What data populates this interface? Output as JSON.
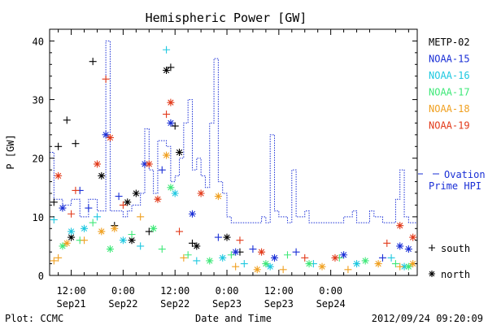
{
  "chart_data": {
    "type": "scatter",
    "title": "Hemispheric Power [GW]",
    "ylabel": "P [GW]",
    "xlabel": "Date and Time",
    "ylim": [
      0,
      42
    ],
    "xlim": [
      "2012-09-21 07:00",
      "2012-09-24 20:00"
    ],
    "y_ticks": [
      0,
      10,
      20,
      30,
      40
    ],
    "x_ticks": [
      {
        "t": "2012-09-21 12:00",
        "l1": "12:00",
        "l2": "Sep21"
      },
      {
        "t": "2012-09-22 00:00",
        "l1": "0:00",
        "l2": "Sep22"
      },
      {
        "t": "2012-09-22 12:00",
        "l1": "12:00",
        "l2": "Sep22"
      },
      {
        "t": "2012-09-23 00:00",
        "l1": "0:00",
        "l2": "Sep23"
      },
      {
        "t": "2012-09-23 12:00",
        "l1": "12:00",
        "l2": "Sep23"
      },
      {
        "t": "2012-09-24 00:00",
        "l1": "0:00",
        "l2": "Sep24"
      }
    ],
    "series": [
      {
        "name": "METP-02",
        "color": "#000000"
      },
      {
        "name": "NOAA-15",
        "color": "#1a2fd6"
      },
      {
        "name": "NOAA-16",
        "color": "#1ec8e0"
      },
      {
        "name": "NOAA-17",
        "color": "#3ee878"
      },
      {
        "name": "NOAA-18",
        "color": "#f0a020"
      },
      {
        "name": "NOAA-19",
        "color": "#e23a1a"
      }
    ],
    "ovation": {
      "name_lines": [
        "Ovation",
        "Prime HPI"
      ],
      "color": "#1a2fd6",
      "steps": [
        [
          "2012-09-21 07:00",
          21
        ],
        [
          "2012-09-21 08:00",
          13
        ],
        [
          "2012-09-21 10:00",
          12
        ],
        [
          "2012-09-21 12:00",
          13
        ],
        [
          "2012-09-21 14:00",
          10
        ],
        [
          "2012-09-21 16:00",
          13
        ],
        [
          "2012-09-21 18:00",
          11
        ],
        [
          "2012-09-21 20:00",
          40
        ],
        [
          "2012-09-21 21:00",
          11
        ],
        [
          "2012-09-22 00:00",
          10
        ],
        [
          "2012-09-22 01:00",
          11
        ],
        [
          "2012-09-22 02:00",
          12
        ],
        [
          "2012-09-22 04:00",
          14
        ],
        [
          "2012-09-22 05:00",
          25
        ],
        [
          "2012-09-22 06:00",
          18
        ],
        [
          "2012-09-22 07:00",
          14
        ],
        [
          "2012-09-22 08:00",
          23
        ],
        [
          "2012-09-22 10:00",
          22
        ],
        [
          "2012-09-22 11:00",
          16
        ],
        [
          "2012-09-22 12:00",
          17
        ],
        [
          "2012-09-22 13:00",
          20
        ],
        [
          "2012-09-22 14:00",
          26
        ],
        [
          "2012-09-22 15:00",
          30
        ],
        [
          "2012-09-22 16:00",
          18
        ],
        [
          "2012-09-22 17:00",
          20
        ],
        [
          "2012-09-22 18:00",
          17
        ],
        [
          "2012-09-22 19:00",
          15
        ],
        [
          "2012-09-22 20:00",
          26
        ],
        [
          "2012-09-22 21:00",
          37
        ],
        [
          "2012-09-22 22:00",
          16
        ],
        [
          "2012-09-22 23:00",
          14
        ],
        [
          "2012-09-23 00:00",
          10
        ],
        [
          "2012-09-23 01:00",
          9
        ],
        [
          "2012-09-23 08:00",
          10
        ],
        [
          "2012-09-23 09:00",
          9
        ],
        [
          "2012-09-23 10:00",
          24
        ],
        [
          "2012-09-23 11:00",
          11
        ],
        [
          "2012-09-23 12:00",
          10
        ],
        [
          "2012-09-23 14:00",
          9
        ],
        [
          "2012-09-23 15:00",
          18
        ],
        [
          "2012-09-23 16:00",
          10
        ],
        [
          "2012-09-23 18:00",
          11
        ],
        [
          "2012-09-23 19:00",
          9
        ],
        [
          "2012-09-24 03:00",
          10
        ],
        [
          "2012-09-24 05:00",
          11
        ],
        [
          "2012-09-24 06:00",
          9
        ],
        [
          "2012-09-24 09:00",
          11
        ],
        [
          "2012-09-24 10:00",
          10
        ],
        [
          "2012-09-24 12:00",
          9
        ],
        [
          "2012-09-24 15:00",
          13
        ],
        [
          "2012-09-24 16:00",
          18
        ],
        [
          "2012-09-24 17:00",
          10
        ],
        [
          "2012-09-24 18:00",
          9
        ],
        [
          "2012-09-24 20:00",
          9
        ]
      ]
    },
    "points": [
      [
        "METP-02",
        "south",
        "2012-09-21 09:00",
        22.0
      ],
      [
        "METP-02",
        "south",
        "2012-09-21 11:00",
        26.5
      ],
      [
        "METP-02",
        "south",
        "2012-09-21 13:00",
        22.5
      ],
      [
        "METP-02",
        "south",
        "2012-09-21 17:00",
        36.5
      ],
      [
        "METP-02",
        "south",
        "2012-09-21 08:00",
        12.5
      ],
      [
        "METP-02",
        "north",
        "2012-09-21 19:00",
        17.0
      ],
      [
        "METP-02",
        "north",
        "2012-09-22 01:00",
        12.5
      ],
      [
        "METP-02",
        "north",
        "2012-09-22 03:00",
        14.0
      ],
      [
        "METP-02",
        "north",
        "2012-09-22 10:00",
        35.0
      ],
      [
        "METP-02",
        "south",
        "2012-09-22 11:00",
        35.5
      ],
      [
        "METP-02",
        "south",
        "2012-09-22 12:00",
        25.5
      ],
      [
        "METP-02",
        "north",
        "2012-09-22 13:00",
        21.0
      ],
      [
        "METP-02",
        "south",
        "2012-09-22 16:00",
        5.5
      ],
      [
        "METP-02",
        "north",
        "2012-09-22 17:00",
        5.0
      ],
      [
        "METP-02",
        "north",
        "2012-09-23 00:00",
        6.5
      ],
      [
        "METP-02",
        "south",
        "2012-09-23 03:00",
        4.0
      ],
      [
        "METP-02",
        "north",
        "2012-09-21 12:00",
        6.5
      ],
      [
        "METP-02",
        "south",
        "2012-09-21 22:00",
        8.5
      ],
      [
        "METP-02",
        "north",
        "2012-09-22 02:00",
        6.0
      ],
      [
        "METP-02",
        "south",
        "2012-09-22 06:00",
        7.5
      ],
      [
        "NOAA-15",
        "north",
        "2012-09-21 10:00",
        11.5
      ],
      [
        "NOAA-15",
        "south",
        "2012-09-21 14:00",
        14.5
      ],
      [
        "NOAA-15",
        "north",
        "2012-09-21 20:00",
        24.0
      ],
      [
        "NOAA-15",
        "south",
        "2012-09-21 23:00",
        13.5
      ],
      [
        "NOAA-15",
        "north",
        "2012-09-22 05:00",
        19.0
      ],
      [
        "NOAA-15",
        "south",
        "2012-09-22 09:00",
        18.0
      ],
      [
        "NOAA-15",
        "north",
        "2012-09-22 11:00",
        26.0
      ],
      [
        "NOAA-15",
        "north",
        "2012-09-22 16:00",
        10.5
      ],
      [
        "NOAA-15",
        "south",
        "2012-09-22 22:00",
        6.5
      ],
      [
        "NOAA-15",
        "north",
        "2012-09-23 02:00",
        4.0
      ],
      [
        "NOAA-15",
        "south",
        "2012-09-23 06:00",
        4.5
      ],
      [
        "NOAA-15",
        "north",
        "2012-09-23 11:00",
        3.0
      ],
      [
        "NOAA-15",
        "south",
        "2012-09-23 16:00",
        4.0
      ],
      [
        "NOAA-15",
        "north",
        "2012-09-24 03:00",
        3.5
      ],
      [
        "NOAA-15",
        "south",
        "2012-09-24 12:00",
        3.0
      ],
      [
        "NOAA-15",
        "north",
        "2012-09-24 16:00",
        5.0
      ],
      [
        "NOAA-15",
        "north",
        "2012-09-24 18:00",
        4.5
      ],
      [
        "NOAA-15",
        "south",
        "2012-09-21 16:00",
        11.5
      ],
      [
        "NOAA-16",
        "south",
        "2012-09-21 08:00",
        9.5
      ],
      [
        "NOAA-16",
        "north",
        "2012-09-21 12:00",
        7.5
      ],
      [
        "NOAA-16",
        "south",
        "2012-09-21 18:00",
        10.0
      ],
      [
        "NOAA-16",
        "north",
        "2012-09-22 00:00",
        6.0
      ],
      [
        "NOAA-16",
        "south",
        "2012-09-22 10:00",
        38.5
      ],
      [
        "NOAA-16",
        "north",
        "2012-09-22 12:00",
        14.0
      ],
      [
        "NOAA-16",
        "south",
        "2012-09-22 17:00",
        2.5
      ],
      [
        "NOAA-16",
        "north",
        "2012-09-22 23:00",
        3.0
      ],
      [
        "NOAA-16",
        "south",
        "2012-09-23 04:00",
        2.0
      ],
      [
        "NOAA-16",
        "north",
        "2012-09-23 10:00",
        1.5
      ],
      [
        "NOAA-16",
        "south",
        "2012-09-23 20:00",
        2.0
      ],
      [
        "NOAA-16",
        "north",
        "2012-09-24 06:00",
        2.0
      ],
      [
        "NOAA-16",
        "south",
        "2012-09-24 14:00",
        3.0
      ],
      [
        "NOAA-16",
        "north",
        "2012-09-24 17:00",
        1.5
      ],
      [
        "NOAA-16",
        "south",
        "2012-09-22 04:00",
        5.0
      ],
      [
        "NOAA-16",
        "north",
        "2012-09-21 15:00",
        8.0
      ],
      [
        "NOAA-17",
        "north",
        "2012-09-21 10:00",
        5.0
      ],
      [
        "NOAA-17",
        "south",
        "2012-09-21 14:00",
        6.0
      ],
      [
        "NOAA-17",
        "north",
        "2012-09-21 21:00",
        4.5
      ],
      [
        "NOAA-17",
        "south",
        "2012-09-22 02:00",
        7.0
      ],
      [
        "NOAA-17",
        "north",
        "2012-09-22 07:00",
        8.0
      ],
      [
        "NOAA-17",
        "south",
        "2012-09-22 09:00",
        4.5
      ],
      [
        "NOAA-17",
        "north",
        "2012-09-22 11:00",
        15.0
      ],
      [
        "NOAA-17",
        "south",
        "2012-09-22 15:00",
        3.5
      ],
      [
        "NOAA-17",
        "north",
        "2012-09-22 20:00",
        2.5
      ],
      [
        "NOAA-17",
        "south",
        "2012-09-23 01:00",
        3.5
      ],
      [
        "NOAA-17",
        "north",
        "2012-09-23 09:00",
        2.0
      ],
      [
        "NOAA-17",
        "south",
        "2012-09-23 14:00",
        3.5
      ],
      [
        "NOAA-17",
        "north",
        "2012-09-23 19:00",
        2.0
      ],
      [
        "NOAA-17",
        "south",
        "2012-09-24 02:00",
        3.0
      ],
      [
        "NOAA-17",
        "north",
        "2012-09-24 08:00",
        2.5
      ],
      [
        "NOAA-17",
        "south",
        "2012-09-24 15:00",
        2.0
      ],
      [
        "NOAA-17",
        "north",
        "2012-09-24 18:00",
        1.5
      ],
      [
        "NOAA-17",
        "south",
        "2012-09-21 17:00",
        9.0
      ],
      [
        "NOAA-18",
        "south",
        "2012-09-21 08:00",
        2.5
      ],
      [
        "NOAA-18",
        "north",
        "2012-09-21 11:00",
        5.5
      ],
      [
        "NOAA-18",
        "south",
        "2012-09-21 15:00",
        6.0
      ],
      [
        "NOAA-18",
        "north",
        "2012-09-21 22:00",
        8.0
      ],
      [
        "NOAA-18",
        "south",
        "2012-09-22 04:00",
        10.0
      ],
      [
        "NOAA-18",
        "north",
        "2012-09-22 10:00",
        20.5
      ],
      [
        "NOAA-18",
        "south",
        "2012-09-22 14:00",
        3.0
      ],
      [
        "NOAA-18",
        "north",
        "2012-09-22 22:00",
        13.5
      ],
      [
        "NOAA-18",
        "south",
        "2012-09-23 02:00",
        1.5
      ],
      [
        "NOAA-18",
        "north",
        "2012-09-23 07:00",
        1.0
      ],
      [
        "NOAA-18",
        "south",
        "2012-09-23 13:00",
        1.0
      ],
      [
        "NOAA-18",
        "north",
        "2012-09-23 22:00",
        1.5
      ],
      [
        "NOAA-18",
        "south",
        "2012-09-24 04:00",
        1.0
      ],
      [
        "NOAA-18",
        "north",
        "2012-09-24 11:00",
        2.0
      ],
      [
        "NOAA-18",
        "south",
        "2012-09-24 16:00",
        1.5
      ],
      [
        "NOAA-18",
        "north",
        "2012-09-24 19:00",
        2.0
      ],
      [
        "NOAA-18",
        "south",
        "2012-09-21 09:00",
        3.0
      ],
      [
        "NOAA-18",
        "north",
        "2012-09-21 19:00",
        7.5
      ],
      [
        "NOAA-19",
        "north",
        "2012-09-21 09:00",
        17.0
      ],
      [
        "NOAA-19",
        "south",
        "2012-09-21 12:00",
        10.5
      ],
      [
        "NOAA-19",
        "north",
        "2012-09-21 18:00",
        19.0
      ],
      [
        "NOAA-19",
        "south",
        "2012-09-21 20:00",
        33.5
      ],
      [
        "NOAA-19",
        "north",
        "2012-09-21 21:00",
        23.5
      ],
      [
        "NOAA-19",
        "south",
        "2012-09-22 00:00",
        12.0
      ],
      [
        "NOAA-19",
        "north",
        "2012-09-22 06:00",
        19.0
      ],
      [
        "NOAA-19",
        "south",
        "2012-09-22 10:00",
        27.5
      ],
      [
        "NOAA-19",
        "north",
        "2012-09-22 11:00",
        29.5
      ],
      [
        "NOAA-19",
        "south",
        "2012-09-22 13:00",
        7.5
      ],
      [
        "NOAA-19",
        "north",
        "2012-09-22 18:00",
        14.0
      ],
      [
        "NOAA-19",
        "south",
        "2012-09-23 03:00",
        6.0
      ],
      [
        "NOAA-19",
        "north",
        "2012-09-23 08:00",
        4.0
      ],
      [
        "NOAA-19",
        "south",
        "2012-09-23 18:00",
        3.0
      ],
      [
        "NOAA-19",
        "north",
        "2012-09-24 01:00",
        3.0
      ],
      [
        "NOAA-19",
        "south",
        "2012-09-24 13:00",
        5.5
      ],
      [
        "NOAA-19",
        "north",
        "2012-09-24 16:00",
        8.5
      ],
      [
        "NOAA-19",
        "north",
        "2012-09-24 19:00",
        6.5
      ],
      [
        "NOAA-19",
        "south",
        "2012-09-21 13:00",
        14.5
      ],
      [
        "NOAA-19",
        "north",
        "2012-09-22 08:00",
        13.0
      ]
    ],
    "marker_legend": [
      {
        "symbol": "+",
        "label": "south"
      },
      {
        "symbol": "*",
        "label": "north"
      }
    ]
  },
  "footer": {
    "left": "Plot: CCMC",
    "right": "2012/09/24 09:20:09"
  }
}
